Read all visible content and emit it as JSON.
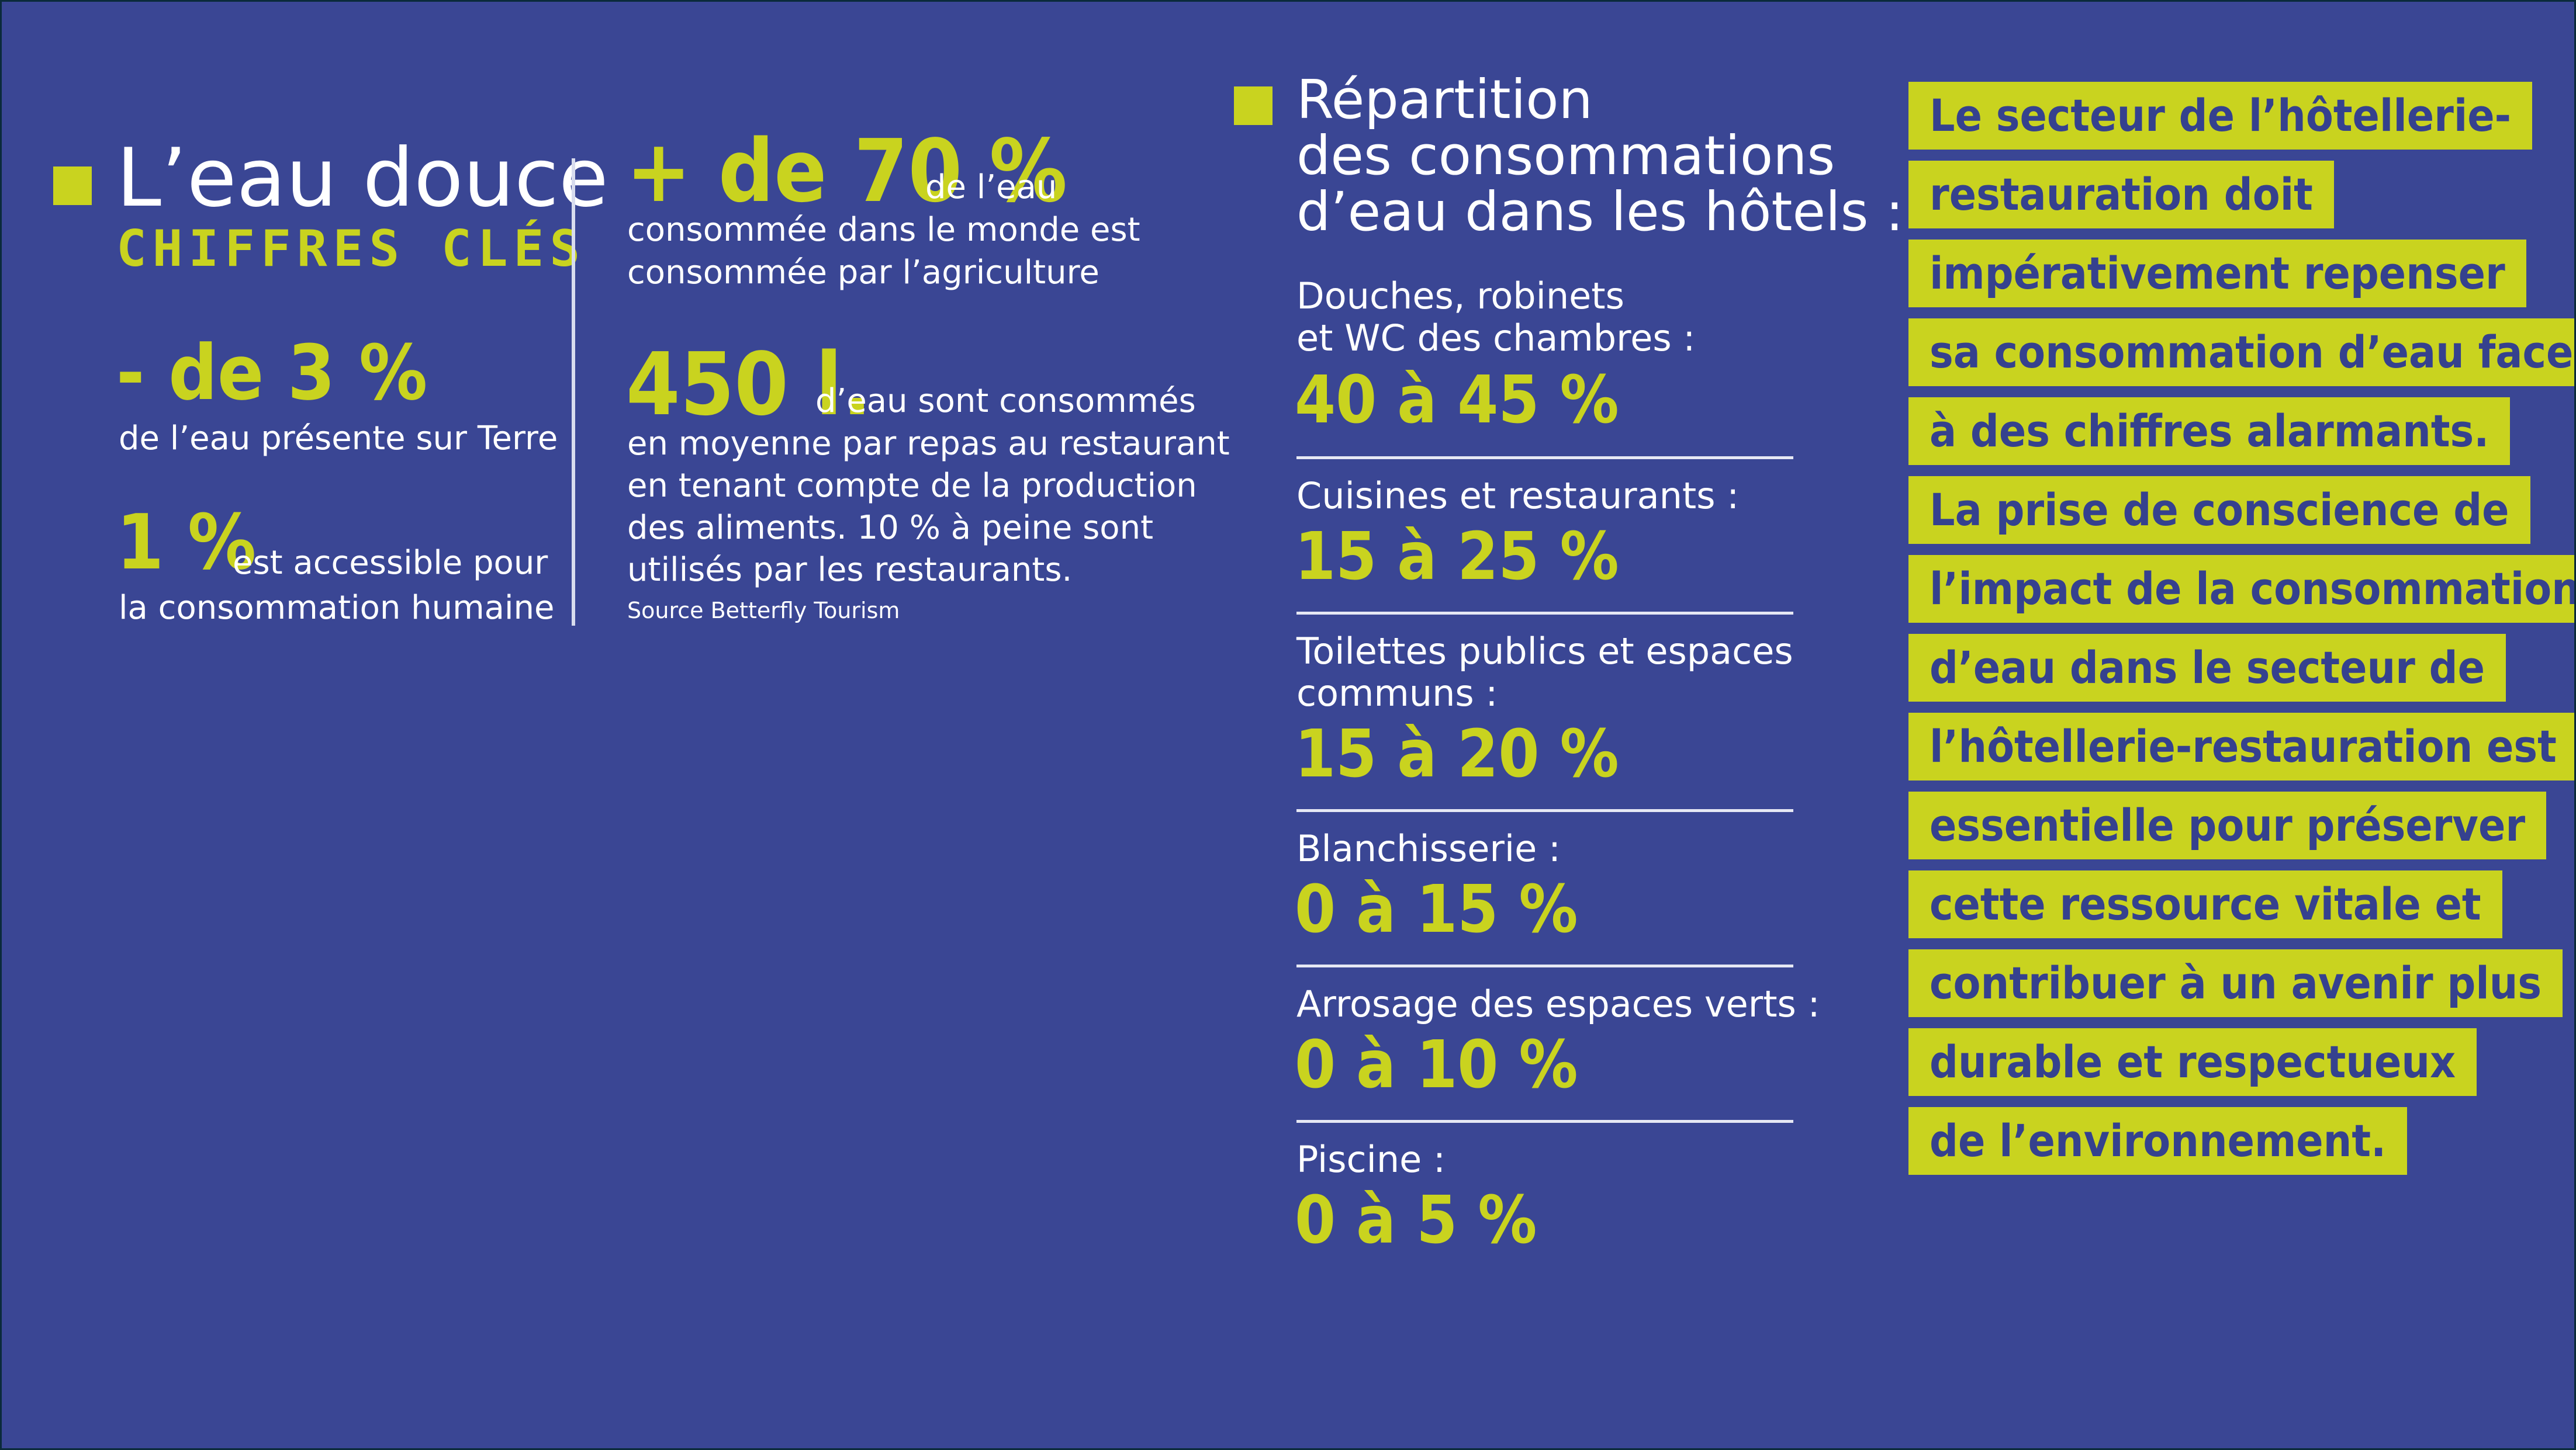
{
  "key_figures": {
    "title": "L’eau douce",
    "subtitle": "CHIFFRES CLÉS",
    "stat1": {
      "value": "- de 3 %",
      "text": "de l’eau présente sur Terre"
    },
    "stat2": {
      "value": "1 %",
      "text_line1": "est accessible pour",
      "text_line2": "la consommation humaine"
    }
  },
  "agriculture": {
    "value": "+ de 70 %",
    "text_line1": "de l’eau",
    "text_line2": "consommée dans le monde est",
    "text_line3": "consommée par l’agriculture"
  },
  "restaurant": {
    "value": "450 l.",
    "text_line1": "d’eau sont consommés",
    "text_line2": "en moyenne par repas au restaurant",
    "text_line3": "en tenant compte de la production",
    "text_line4": "des aliments. 10 % à peine sont",
    "text_line5": "utilisés par les restaurants.",
    "source": "Source Betterfly Tourism"
  },
  "repartition": {
    "title_line1": "Répartition",
    "title_line2": "des consommations",
    "title_line3": "d’eau dans les hôtels :",
    "items": [
      {
        "label_line1": "Douches, robinets",
        "label_line2": "et WC des chambres :",
        "value": "40 à 45 %"
      },
      {
        "label_line1": "Cuisines et restaurants :",
        "label_line2": "",
        "value": "15 à 25 %"
      },
      {
        "label_line1": "Toilettes publics et espaces",
        "label_line2": "communs :",
        "value": "15 à 20 %"
      },
      {
        "label_line1": "Blanchisserie :",
        "label_line2": "",
        "value": "0 à 15 %"
      },
      {
        "label_line1": "Arrosage des espaces verts :",
        "label_line2": "",
        "value": "0 à 10 %"
      },
      {
        "label_line1": "Piscine :",
        "label_line2": "",
        "value": "0 à 5 %"
      }
    ]
  },
  "highlight": {
    "lines": [
      "Le secteur de l’hôtellerie-",
      "restauration doit",
      "impérativement repenser",
      "sa consommation d’eau face",
      "à des chiffres alarmants.",
      "La prise de conscience de",
      "l’impact de la consommation",
      "d’eau dans le secteur de",
      "l’hôtellerie-restauration est",
      "essentielle pour préserver",
      "cette ressource vitale et",
      "contribuer à un avenir plus",
      "durable et respectueux",
      "de l’environnement."
    ]
  },
  "colors": {
    "background": "#3a4694",
    "accent": "#c9d31f",
    "text": "#ffffff"
  }
}
